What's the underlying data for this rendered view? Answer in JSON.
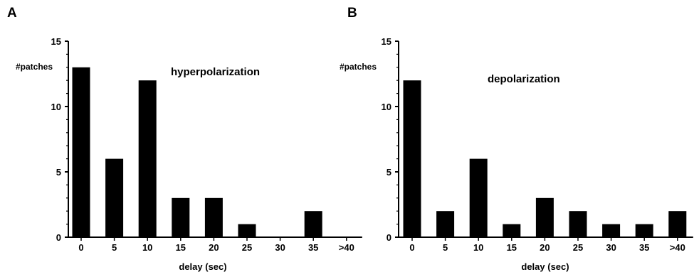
{
  "chart_data": [
    {
      "panel": "A",
      "type": "bar",
      "annotation": "hyperpolarization",
      "ylabel": "#patches",
      "xlabel": "delay (sec)",
      "categories": [
        "0",
        "5",
        "10",
        "15",
        "20",
        "25",
        "30",
        "35",
        ">40"
      ],
      "values": [
        13,
        6,
        12,
        3,
        3,
        1,
        0,
        2,
        0
      ],
      "ylim": [
        0,
        15
      ],
      "yticks": [
        "0",
        "5",
        "10",
        "15"
      ],
      "bar_color": "#000000"
    },
    {
      "panel": "B",
      "type": "bar",
      "annotation": "depolarization",
      "ylabel": "#patches",
      "xlabel": "delay (sec)",
      "categories": [
        "0",
        "5",
        "10",
        "15",
        "20",
        "25",
        "30",
        "35",
        ">40"
      ],
      "values": [
        12,
        2,
        6,
        1,
        3,
        2,
        1,
        1,
        2
      ],
      "ylim": [
        0,
        15
      ],
      "yticks": [
        "0",
        "5",
        "10",
        "15"
      ],
      "bar_color": "#000000"
    }
  ]
}
